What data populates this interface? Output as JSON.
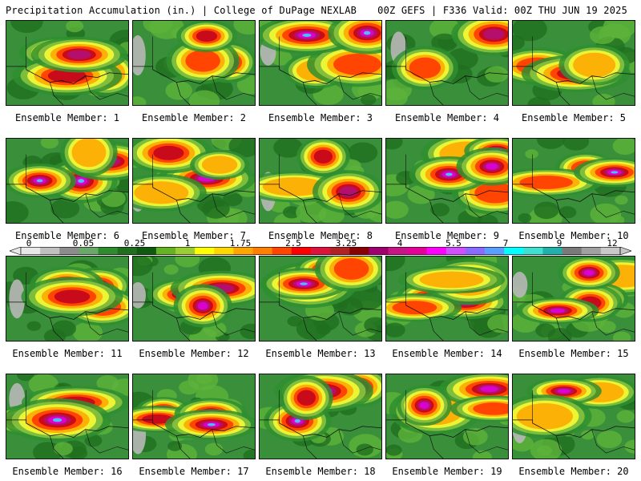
{
  "header": {
    "left_title": "Precipitation Accumulation (in.) | College of DuPage NEXLAB",
    "right_title": "00Z GEFS | F336 Valid: 00Z THU JUN 19 2025"
  },
  "colorbar": {
    "labels": [
      "0",
      "0.05",
      "0.25",
      "1",
      "1.75",
      "2.5",
      "3.25",
      "4",
      "5.5",
      "7",
      "9",
      "12"
    ],
    "colors": [
      "#e8e8e8",
      "#c0c0c0",
      "#8c8c8c",
      "#6aa86a",
      "#2e8b2e",
      "#1f6f1f",
      "#0f5a0f",
      "#63b323",
      "#9acd32",
      "#ffff00",
      "#ffd700",
      "#ffa500",
      "#ff7f00",
      "#ff4500",
      "#ff0000",
      "#dc143c",
      "#b22222",
      "#8b0000",
      "#a0006e",
      "#c71585",
      "#e6009a",
      "#ff00ff",
      "#d050ff",
      "#8a6bff",
      "#5a9fff",
      "#00ffff",
      "#40e0d0",
      "#20b2aa",
      "#7a7a7a",
      "#a0a0a0",
      "#c8c8c8"
    ]
  },
  "members": [
    {
      "caption": "Ensemble Member: 1"
    },
    {
      "caption": "Ensemble Member: 2"
    },
    {
      "caption": "Ensemble Member: 3"
    },
    {
      "caption": "Ensemble Member: 4"
    },
    {
      "caption": "Ensemble Member: 5"
    },
    {
      "caption": "Ensemble Member: 6"
    },
    {
      "caption": "Ensemble Member: 7"
    },
    {
      "caption": "Ensemble Member: 8"
    },
    {
      "caption": "Ensemble Member: 9"
    },
    {
      "caption": "Ensemble Member: 10"
    },
    {
      "caption": "Ensemble Member: 11"
    },
    {
      "caption": "Ensemble Member: 12"
    },
    {
      "caption": "Ensemble Member: 13"
    },
    {
      "caption": "Ensemble Member: 14"
    },
    {
      "caption": "Ensemble Member: 15"
    },
    {
      "caption": "Ensemble Member: 16"
    },
    {
      "caption": "Ensemble Member: 17"
    },
    {
      "caption": "Ensemble Member: 18"
    },
    {
      "caption": "Ensemble Member: 19"
    },
    {
      "caption": "Ensemble Member: 20"
    }
  ]
}
